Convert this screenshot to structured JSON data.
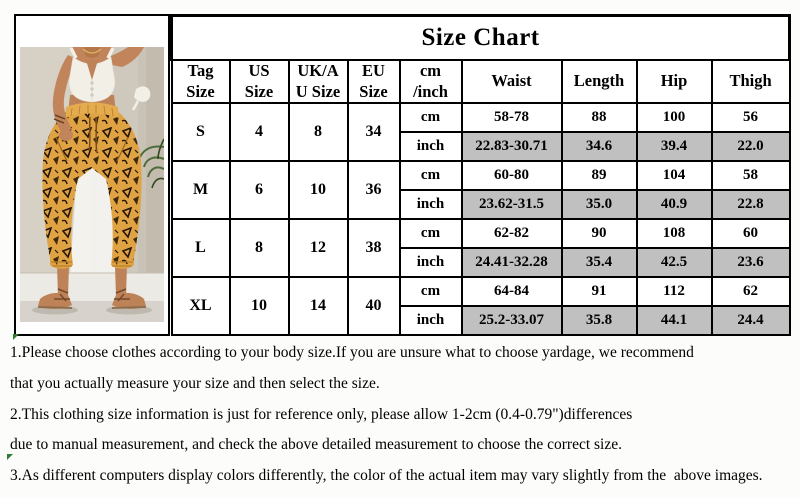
{
  "size_chart": {
    "title": "Size Chart",
    "column_keys": [
      "tag-size",
      "us-size",
      "uk-au-size",
      "eu-size",
      "cm-inch",
      "waist",
      "length",
      "hip",
      "thigh"
    ],
    "columns": [
      "Tag\nSize",
      "US\nSize",
      "UK/A\nU Size",
      "EU\nSize",
      "cm\n/inch",
      "Waist",
      "Length",
      "Hip",
      "Thigh"
    ],
    "unit_labels": {
      "cm": "cm",
      "inch": "inch"
    },
    "rows": [
      {
        "tag": "S",
        "us": "4",
        "uk_au": "8",
        "eu": "34",
        "cm": {
          "waist": "58-78",
          "length": "88",
          "hip": "100",
          "thigh": "56"
        },
        "inch": {
          "waist": "22.83-30.71",
          "length": "34.6",
          "hip": "39.4",
          "thigh": "22.0"
        }
      },
      {
        "tag": "M",
        "us": "6",
        "uk_au": "10",
        "eu": "36",
        "cm": {
          "waist": "60-80",
          "length": "89",
          "hip": "104",
          "thigh": "58"
        },
        "inch": {
          "waist": "23.62-31.5",
          "length": "35.0",
          "hip": "40.9",
          "thigh": "22.8"
        }
      },
      {
        "tag": "L",
        "us": "8",
        "uk_au": "12",
        "eu": "38",
        "cm": {
          "waist": "62-82",
          "length": "90",
          "hip": "108",
          "thigh": "60"
        },
        "inch": {
          "waist": "24.41-32.28",
          "length": "35.4",
          "hip": "42.5",
          "thigh": "23.6"
        }
      },
      {
        "tag": "XL",
        "us": "10",
        "uk_au": "14",
        "eu": "40",
        "cm": {
          "waist": "64-84",
          "length": "91",
          "hip": "112",
          "thigh": "62"
        },
        "inch": {
          "waist": "25.2-33.07",
          "length": "35.8",
          "hip": "44.1",
          "thigh": "24.4"
        }
      }
    ],
    "colors": {
      "inch_row_bg": "#c0c0c0",
      "border": "#000000",
      "cell_bg": "#ffffff"
    }
  },
  "notes": {
    "lines": [
      "1.Please choose clothes according to your body size.If you are unsure what to choose yardage, we recommend",
      "that you actually measure your size and then select the size.",
      "2.This clothing size information is just for reference only, please allow 1-2cm (0.4-0.79\")differences",
      "due to manual measurement, and check the above detailed measurement to choose the correct size.",
      "3.As different computers display colors differently, the color of the actual item may vary slightly from the  above images."
    ]
  },
  "photo": {
    "description": "model wearing white cami crop top and mustard yellow printed harem pants",
    "colors": {
      "pants": "#dfa344",
      "pattern": "#241505",
      "top": "#f2efe7",
      "skin": "#c2855b",
      "wall": "#cfc8bc",
      "floor": "#eceae5",
      "leaf": "#4c6b38"
    }
  }
}
